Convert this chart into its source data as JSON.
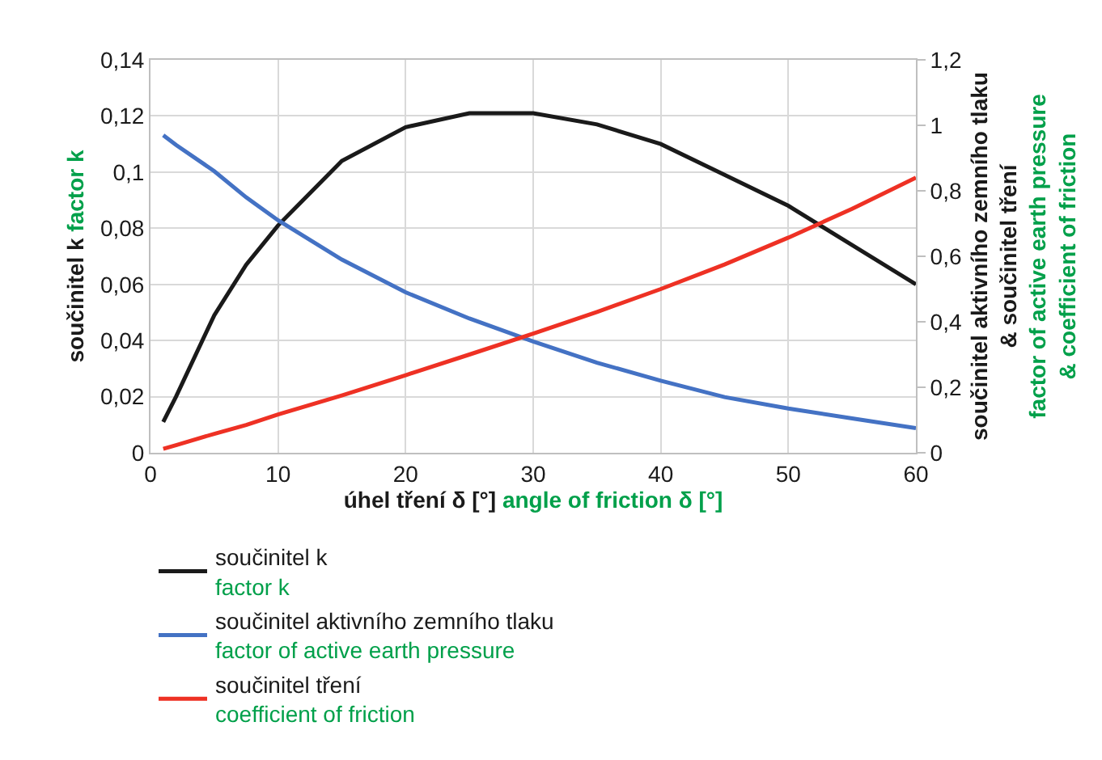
{
  "chart_data": {
    "type": "line",
    "xlabel": [
      "úhel tření δ [°]",
      "angle of friction δ [°]"
    ],
    "ylabel": [
      "součinitel k",
      "factor k"
    ],
    "y2label": [
      "součinitel aktivního zemního tlaku\n& součinitel tření",
      "factor of active earth pressure\n& coefficient of friction"
    ],
    "x": [
      1,
      2,
      5,
      7.5,
      10,
      15,
      20,
      25,
      30,
      35,
      40,
      45,
      50,
      55,
      60
    ],
    "xlim": [
      0,
      60
    ],
    "xticks": [
      0,
      10,
      20,
      30,
      40,
      50,
      60
    ],
    "ylim": [
      0,
      0.14
    ],
    "yticks": [
      {
        "value": 0,
        "label": "0"
      },
      {
        "value": 0.02,
        "label": "0,02"
      },
      {
        "value": 0.04,
        "label": "0,04"
      },
      {
        "value": 0.06,
        "label": "0,06"
      },
      {
        "value": 0.08,
        "label": "0,08"
      },
      {
        "value": 0.1,
        "label": "0,1"
      },
      {
        "value": 0.12,
        "label": "0,12"
      },
      {
        "value": 0.14,
        "label": "0,14"
      }
    ],
    "y2lim": [
      0,
      1.2
    ],
    "y2ticks": [
      {
        "value": 0,
        "label": "0"
      },
      {
        "value": 0.2,
        "label": "0,2"
      },
      {
        "value": 0.4,
        "label": "0,4"
      },
      {
        "value": 0.6,
        "label": "0,6"
      },
      {
        "value": 0.8,
        "label": "0,8"
      },
      {
        "value": 1,
        "label": "1"
      },
      {
        "value": 1.2,
        "label": "1,2"
      }
    ],
    "series": [
      {
        "name": "součinitel k\nfactor k",
        "color": "#1a1a1a",
        "values": [
          0.011,
          0.02,
          0.049,
          0.067,
          0.081,
          0.104,
          0.116,
          0.121,
          0.121,
          0.117,
          0.11,
          0.099,
          0.088,
          0.074,
          0.06
        ]
      },
      {
        "name": "součinitel aktivního zemního tlaku\nfactor of active earth pressure",
        "color": "#4472c4",
        "axis": "y2",
        "values": [
          0.97,
          0.94,
          0.86,
          0.78,
          0.71,
          0.59,
          0.49,
          0.41,
          0.34,
          0.275,
          0.22,
          0.17,
          0.135,
          0.105,
          0.075
        ]
      },
      {
        "name": "součinitel tření\ncoefficient of friction",
        "color": "#ee3124",
        "axis": "y2",
        "values": [
          0.012,
          0.023,
          0.058,
          0.085,
          0.117,
          0.175,
          0.237,
          0.3,
          0.364,
          0.43,
          0.5,
          0.575,
          0.657,
          0.745,
          0.84
        ]
      }
    ],
    "grid": true,
    "legend": "bottom",
    "marker": "none",
    "line_style": "solid"
  }
}
